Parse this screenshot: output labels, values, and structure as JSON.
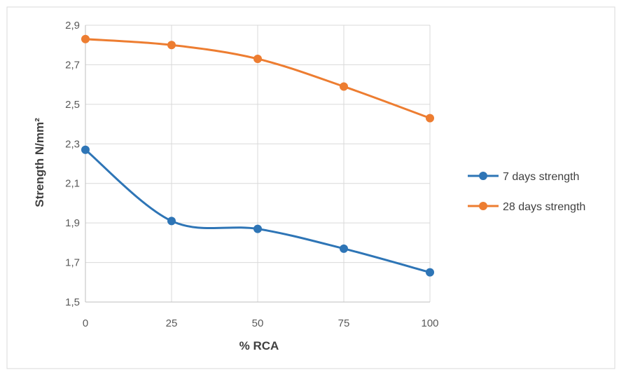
{
  "chart_data": {
    "type": "line",
    "title": "",
    "xlabel": "% RCA",
    "ylabel": "Strength N/mm²",
    "x": [
      0,
      25,
      50,
      75,
      100
    ],
    "x_tick_labels": [
      "0",
      "25",
      "50",
      "75",
      "100"
    ],
    "y_tick_labels": [
      "1,5",
      "1,7",
      "1,9",
      "2,1",
      "2,3",
      "2,5",
      "2,7",
      "2,9"
    ],
    "xlim": [
      0,
      100
    ],
    "ylim": [
      1.5,
      2.9
    ],
    "y_ticks": [
      1.5,
      1.7,
      1.9,
      2.1,
      2.3,
      2.5,
      2.7,
      2.9
    ],
    "grid": true,
    "smooth": true,
    "legend_position": "right",
    "series": [
      {
        "name": "7 days strength",
        "color": "#2E75B6",
        "values": [
          2.27,
          1.91,
          1.87,
          1.77,
          1.65
        ]
      },
      {
        "name": "28 days strength",
        "color": "#ED7D31",
        "values": [
          2.83,
          2.8,
          2.73,
          2.59,
          2.43
        ]
      }
    ]
  }
}
